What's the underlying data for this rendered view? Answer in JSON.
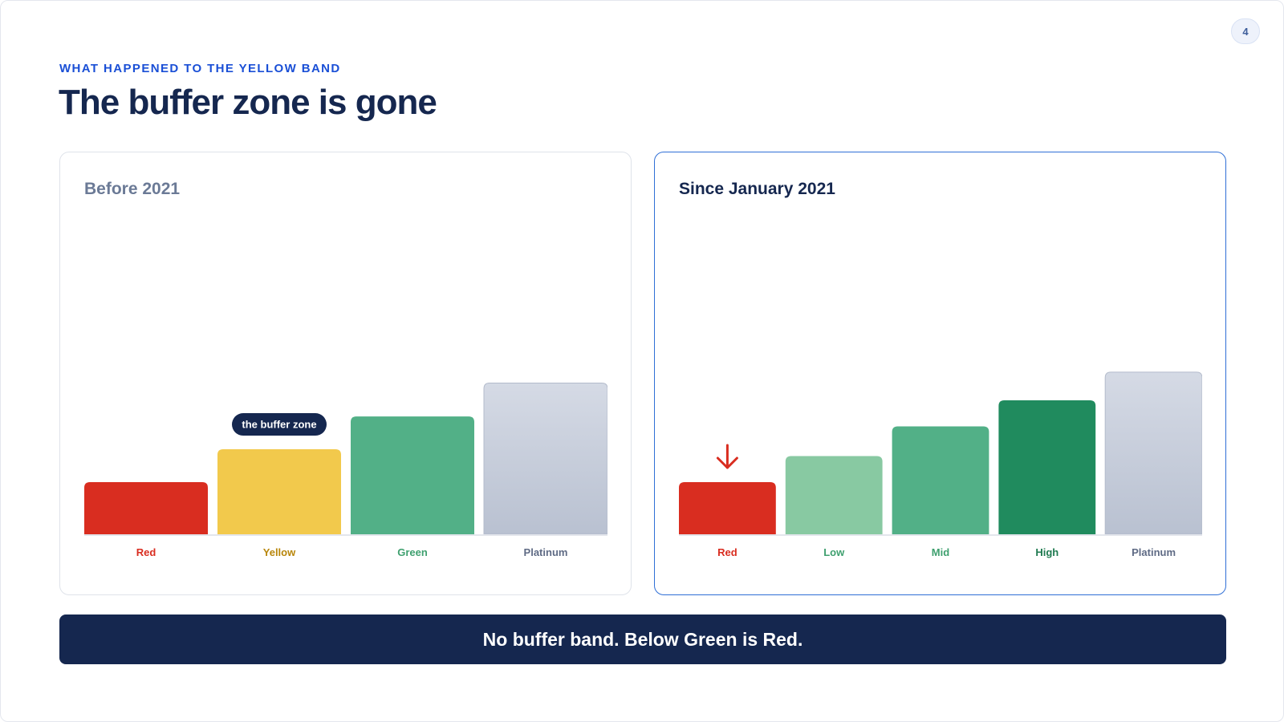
{
  "page_number": "4",
  "eyebrow": "WHAT HAPPENED TO THE YELLOW BAND",
  "title": "The buffer zone is gone",
  "banner": "No buffer band. Below Green is Red.",
  "chart_data": [
    {
      "type": "bar",
      "title": "Before 2021",
      "categories": [
        "Red",
        "Yellow",
        "Green",
        "Platinum"
      ],
      "values": [
        1.0,
        1.63,
        2.26,
        2.9
      ],
      "colors": [
        "#d92d20",
        "#f2c94c",
        "#52b087",
        "#c4cad8"
      ],
      "label_colors": [
        "#d92d20",
        "#b8860b",
        "#3fa06f",
        "#5f6b85"
      ],
      "annotation": {
        "category": "Yellow",
        "text": "the buffer zone"
      },
      "ylim": [
        0,
        6.0
      ]
    },
    {
      "type": "bar",
      "title": "Since January 2021",
      "categories": [
        "Red",
        "Low",
        "Mid",
        "High",
        "Platinum"
      ],
      "values": [
        1.0,
        1.5,
        2.07,
        2.57,
        3.11
      ],
      "colors": [
        "#d92d20",
        "#88c9a2",
        "#52b087",
        "#208b5e",
        "#c4cad8"
      ],
      "label_colors": [
        "#d92d20",
        "#3fa06f",
        "#3fa06f",
        "#1f7a50",
        "#5f6b85"
      ],
      "marker": {
        "category": "Red",
        "icon": "arrow-down-icon",
        "color": "#d92d20"
      },
      "ylim": [
        0,
        6.0
      ]
    }
  ]
}
